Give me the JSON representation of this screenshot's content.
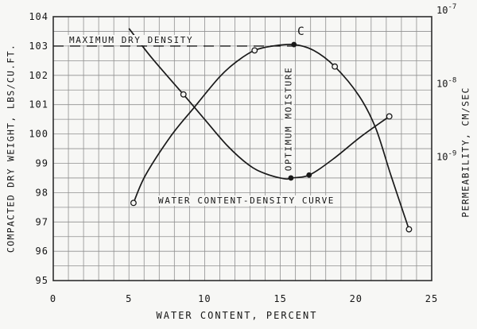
{
  "chart_data": {
    "type": "line",
    "xlabel": "WATER CONTENT, PERCENT",
    "ylabel_left": "COMPACTED DRY WEIGHT, LBS/CU.FT.",
    "ylabel_right": "PERMEABILITY, CM/SEC",
    "x_range": [
      0,
      25
    ],
    "x_tick_labels": [
      0,
      5,
      10,
      15,
      20,
      25
    ],
    "x_grid_step": 1,
    "y_left_range": [
      95,
      104
    ],
    "y_left_tick_labels": [
      104,
      103,
      102,
      101,
      100,
      99,
      98,
      97,
      96,
      95
    ],
    "y_left_grid_step": 0.5,
    "y_right_scale": "log",
    "y_right_ticks": [
      {
        "base": "10",
        "exp": "-7",
        "value": 1e-07,
        "aligns_with_left_y": 104
      },
      {
        "base": "10",
        "exp": "-8",
        "value": 1e-08,
        "aligns_with_left_y": 101.5
      },
      {
        "base": "10",
        "exp": "-9",
        "value": 1e-09,
        "aligns_with_left_y": 99.0
      }
    ],
    "grid": true,
    "legend": "none",
    "series": [
      {
        "name": "water-content-density-curve",
        "label": "WATER CONTENT-DENSITY CURVE",
        "axis": "left",
        "x": [
          5.3,
          6.1,
          7.8,
          9.3,
          11.0,
          12.2,
          13.3,
          14.5,
          15.9,
          17.2,
          18.6,
          20.2,
          21.3,
          22.3,
          23.5
        ],
        "y": [
          97.65,
          98.6,
          99.95,
          100.9,
          101.95,
          102.5,
          102.85,
          103.0,
          103.05,
          102.85,
          102.3,
          101.3,
          100.2,
          98.6,
          96.75
        ],
        "markers": [
          {
            "x": 5.3,
            "y": 97.65,
            "style": "open"
          },
          {
            "x": 13.3,
            "y": 102.85,
            "style": "open"
          },
          {
            "x": 15.9,
            "y": 103.05,
            "style": "filled",
            "label": "C"
          },
          {
            "x": 18.6,
            "y": 102.3,
            "style": "open"
          },
          {
            "x": 23.5,
            "y": 96.75,
            "style": "open"
          }
        ]
      },
      {
        "name": "permeability-curve",
        "label": "PERMEABILITY",
        "axis": "right",
        "x": [
          5.0,
          6.5,
          8.6,
          10.0,
          11.5,
          12.9,
          14.0,
          15.3,
          15.7,
          16.9,
          18.5,
          20.3,
          22.2
        ],
        "y": [
          103.6,
          102.6,
          101.35,
          100.5,
          99.6,
          98.95,
          98.65,
          98.47,
          98.5,
          98.6,
          99.15,
          99.9,
          100.6
        ],
        "y_cm_per_sec": [
          "6.9e-8",
          "2.8e-8",
          "8.7e-9",
          "4.0e-9",
          "1.7e-9",
          "9.5e-10",
          "7.2e-10",
          "6.1e-10",
          "6.3e-10",
          "6.9e-10",
          "1.1e-9",
          "2.3e-9",
          "4.4e-9"
        ],
        "markers": [
          {
            "x": 8.6,
            "y": 101.35,
            "style": "open",
            "k_cm_per_sec": "8.7e-9"
          },
          {
            "x": 15.7,
            "y": 98.5,
            "style": "filled",
            "k_cm_per_sec": "6.3e-10"
          },
          {
            "x": 16.9,
            "y": 98.6,
            "style": "filled",
            "k_cm_per_sec": "6.9e-10"
          },
          {
            "x": 22.2,
            "y": 100.6,
            "style": "open",
            "k_cm_per_sec": "4.4e-9"
          }
        ]
      }
    ],
    "annotations": {
      "max_density": {
        "text": "MAXIMUM DRY DENSITY",
        "line_y_left": 103,
        "line_x_from": 0,
        "line_x_to": 15.9,
        "line_style": "dashed"
      },
      "optimum_moisture": {
        "text": "OPTIMUM MOISTURE",
        "at_x": 15.5,
        "orientation": "vertical"
      },
      "curve_label": {
        "text": "WATER CONTENT-DENSITY CURVE"
      },
      "point_c": {
        "text": "C",
        "x": 15.9,
        "y": 103.05
      }
    },
    "colors": {
      "ink": "#1a1a1a",
      "grid": "#8f8f8f",
      "frame": "#2e2e2e",
      "paper": "#f7f7f5"
    }
  }
}
